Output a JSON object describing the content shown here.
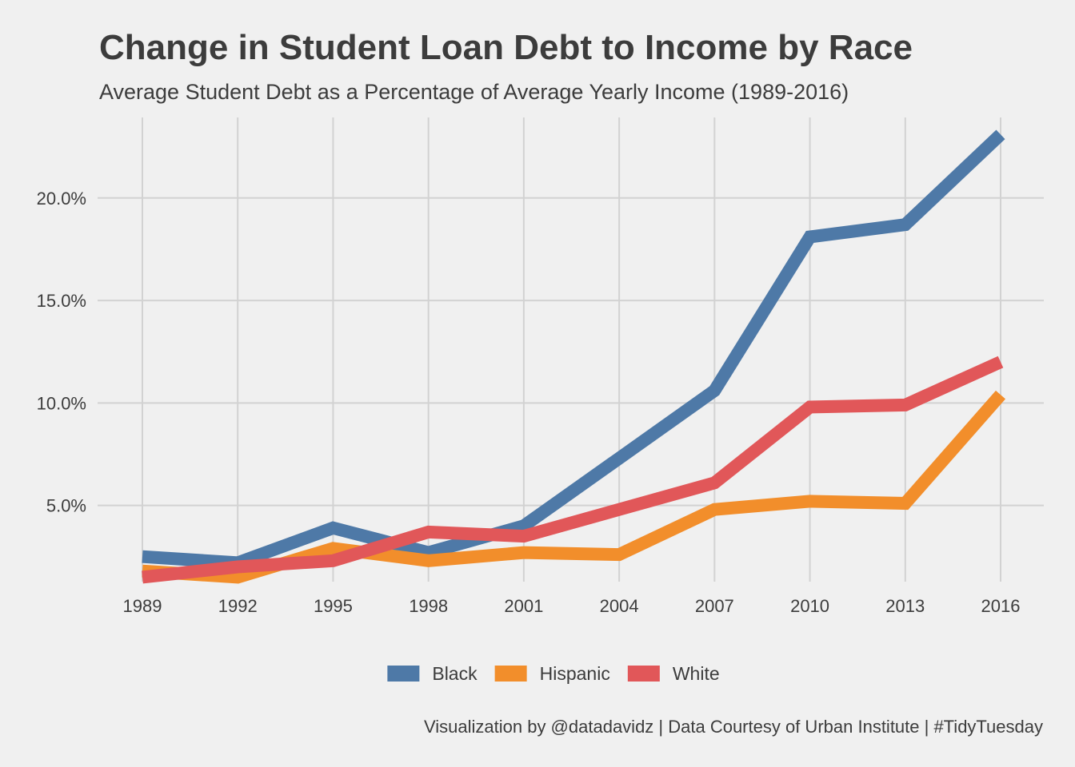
{
  "chart_data": {
    "type": "line",
    "title": "Change in Student Loan Debt to Income by Race",
    "subtitle": "Average Student Debt as a Percentage of Average Yearly Income (1989-2016)",
    "x": [
      1989,
      1992,
      1995,
      1998,
      2001,
      2004,
      2007,
      2010,
      2013,
      2016
    ],
    "x_tick_labels": [
      "1989",
      "1992",
      "1995",
      "1998",
      "2001",
      "2004",
      "2007",
      "2010",
      "2013",
      "2016"
    ],
    "y_ticks": [
      0.05,
      0.1,
      0.15,
      0.2
    ],
    "y_tick_labels": [
      "5.0%",
      "10.0%",
      "15.0%",
      "20.0%"
    ],
    "xlim": [
      1989,
      2016
    ],
    "ylim": [
      0.0128,
      0.2393
    ],
    "grid": true,
    "legend_position": "bottom",
    "series": [
      {
        "name": "Black",
        "color": "#4e79a7",
        "values": [
          0.025,
          0.022,
          0.039,
          0.027,
          0.04,
          0.073,
          0.106,
          0.181,
          0.187,
          0.231
        ]
      },
      {
        "name": "Hispanic",
        "color": "#f28e2b",
        "values": [
          0.018,
          0.015,
          0.029,
          0.023,
          0.027,
          0.026,
          0.048,
          0.052,
          0.051,
          0.104
        ]
      },
      {
        "name": "White",
        "color": "#e15759",
        "values": [
          0.015,
          0.02,
          0.023,
          0.037,
          0.035,
          0.048,
          0.061,
          0.098,
          0.099,
          0.12
        ]
      }
    ],
    "caption": "Visualization by @datadavidz | Data Courtesy of Urban Institute | #TidyTuesday"
  }
}
